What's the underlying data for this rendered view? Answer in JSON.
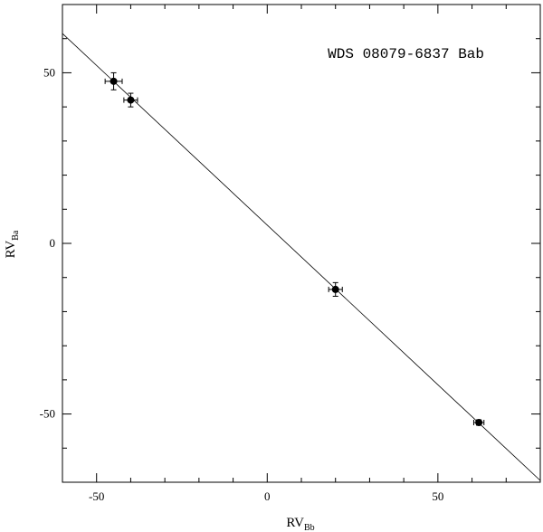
{
  "chart_data": {
    "type": "scatter",
    "title": "WDS 08079-6837 Bab",
    "xlabel": {
      "main": "RV",
      "sub": "Bb"
    },
    "ylabel": {
      "main": "RV",
      "sub": "Ba"
    },
    "xlim": [
      -60,
      80
    ],
    "ylim": [
      -70,
      70
    ],
    "xticks": [
      -50,
      0,
      50
    ],
    "yticks": [
      -50,
      0,
      50
    ],
    "grid": false,
    "points": [
      {
        "x": -45.0,
        "y": 47.5,
        "xerr": 2.5,
        "yerr": 2.5
      },
      {
        "x": -40.0,
        "y": 42.0,
        "xerr": 2.0,
        "yerr": 2.0
      },
      {
        "x": 20.0,
        "y": -13.5,
        "xerr": 2.0,
        "yerr": 2.0
      },
      {
        "x": 62.0,
        "y": -52.5,
        "xerr": 1.5,
        "yerr": 0.8
      }
    ],
    "fit_line": {
      "x": [
        -60,
        80
      ],
      "y": [
        61.5,
        -69.5
      ]
    }
  }
}
